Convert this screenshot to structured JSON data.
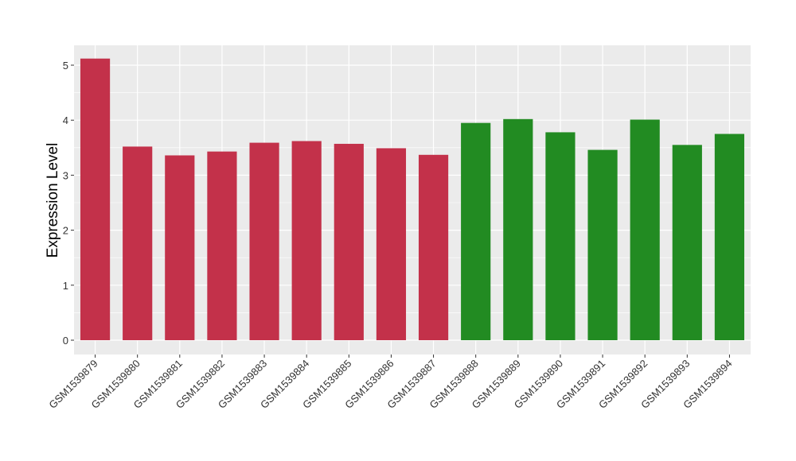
{
  "chart_data": {
    "type": "bar",
    "title": "",
    "xlabel": "",
    "ylabel": "Expression Level",
    "ylim": [
      -0.25,
      5.37
    ],
    "yticks": [
      0,
      1,
      2,
      3,
      4,
      5
    ],
    "grid": true,
    "categories": [
      "GSM1539879",
      "GSM1539880",
      "GSM1539881",
      "GSM1539882",
      "GSM1539883",
      "GSM1539884",
      "GSM1539885",
      "GSM1539886",
      "GSM1539887",
      "GSM1539888",
      "GSM1539889",
      "GSM1539890",
      "GSM1539891",
      "GSM1539892",
      "GSM1539893",
      "GSM1539894"
    ],
    "values": [
      5.12,
      3.52,
      3.36,
      3.43,
      3.59,
      3.62,
      3.57,
      3.49,
      3.37,
      3.95,
      4.02,
      3.78,
      3.46,
      4.01,
      3.55,
      3.75
    ],
    "bar_colors": [
      "#c3314a",
      "#c3314a",
      "#c3314a",
      "#c3314a",
      "#c3314a",
      "#c3314a",
      "#c3314a",
      "#c3314a",
      "#c3314a",
      "#228b22",
      "#228b22",
      "#228b22",
      "#228b22",
      "#228b22",
      "#228b22",
      "#228b22"
    ],
    "panel_background": "#ebebeb",
    "grid_color": "#ffffff"
  }
}
